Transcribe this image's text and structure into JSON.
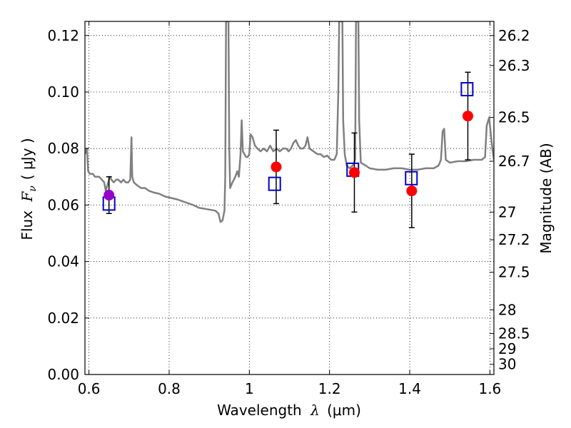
{
  "chart_data": {
    "type": "scatter",
    "xlabel_main": "Wavelength",
    "xlabel_symbol": "λ",
    "xlabel_unit": "(μm)",
    "ylabel_main": "Flux",
    "ylabel_symbol": "F",
    "ylabel_sub": "ν",
    "ylabel_unit": "( μJy )",
    "y2label": "Magnitude (AB)",
    "xlim": [
      0.59,
      1.61
    ],
    "ylim": [
      0.0,
      0.125
    ],
    "grid": true,
    "x_ticks": [
      {
        "value": 0.6,
        "label": "0.6"
      },
      {
        "value": 0.8,
        "label": "0.8"
      },
      {
        "value": 1.0,
        "label": "1"
      },
      {
        "value": 1.2,
        "label": "1.2"
      },
      {
        "value": 1.4,
        "label": "1.4"
      },
      {
        "value": 1.6,
        "label": "1.6"
      }
    ],
    "y_ticks": [
      {
        "value": 0.0,
        "label": "0.00"
      },
      {
        "value": 0.02,
        "label": "0.02"
      },
      {
        "value": 0.04,
        "label": "0.04"
      },
      {
        "value": 0.06,
        "label": "0.06"
      },
      {
        "value": 0.08,
        "label": "0.08"
      },
      {
        "value": 0.1,
        "label": "0.10"
      },
      {
        "value": 0.12,
        "label": "0.12"
      }
    ],
    "y2_ticks": [
      {
        "flux": 0.12,
        "label": "26.2"
      },
      {
        "flux": 0.1094,
        "label": "26.3"
      },
      {
        "flux": 0.091,
        "label": "26.5"
      },
      {
        "flux": 0.0755,
        "label": "26.7"
      },
      {
        "flux": 0.0575,
        "label": "27"
      },
      {
        "flux": 0.0477,
        "label": "27.2"
      },
      {
        "flux": 0.0362,
        "label": "27.5"
      },
      {
        "flux": 0.0229,
        "label": "28"
      },
      {
        "flux": 0.0145,
        "label": "28.5"
      },
      {
        "flux": 0.0091,
        "label": "29"
      },
      {
        "flux": 0.0036,
        "label": "30"
      }
    ],
    "series": [
      {
        "kind": "line",
        "color": "#808080",
        "points": [
          [
            0.59,
            0.078
          ],
          [
            0.595,
            0.08
          ],
          [
            0.598,
            0.072
          ],
          [
            0.602,
            0.071
          ],
          [
            0.61,
            0.071
          ],
          [
            0.615,
            0.07
          ],
          [
            0.625,
            0.07
          ],
          [
            0.632,
            0.069
          ],
          [
            0.638,
            0.068
          ],
          [
            0.642,
            0.065
          ],
          [
            0.646,
            0.067
          ],
          [
            0.652,
            0.07
          ],
          [
            0.656,
            0.069
          ],
          [
            0.662,
            0.068
          ],
          [
            0.668,
            0.069
          ],
          [
            0.673,
            0.069
          ],
          [
            0.68,
            0.068
          ],
          [
            0.686,
            0.069
          ],
          [
            0.692,
            0.068
          ],
          [
            0.698,
            0.068
          ],
          [
            0.703,
            0.069
          ],
          [
            0.706,
            0.084
          ],
          [
            0.708,
            0.07
          ],
          [
            0.712,
            0.068
          ],
          [
            0.72,
            0.067
          ],
          [
            0.73,
            0.066
          ],
          [
            0.74,
            0.066
          ],
          [
            0.75,
            0.065
          ],
          [
            0.76,
            0.0645
          ],
          [
            0.775,
            0.064
          ],
          [
            0.79,
            0.063
          ],
          [
            0.805,
            0.0625
          ],
          [
            0.82,
            0.062
          ],
          [
            0.84,
            0.061
          ],
          [
            0.86,
            0.06
          ],
          [
            0.875,
            0.059
          ],
          [
            0.895,
            0.0585
          ],
          [
            0.915,
            0.058
          ],
          [
            0.923,
            0.057
          ],
          [
            0.928,
            0.054
          ],
          [
            0.933,
            0.0545
          ],
          [
            0.938,
            0.058
          ],
          [
            0.94,
            0.07
          ],
          [
            0.942,
            0.125
          ],
          [
            0.948,
            0.125
          ],
          [
            0.95,
            0.08
          ],
          [
            0.952,
            0.066
          ],
          [
            0.958,
            0.068
          ],
          [
            0.965,
            0.07
          ],
          [
            0.97,
            0.072
          ],
          [
            0.974,
            0.07
          ],
          [
            0.978,
            0.078
          ],
          [
            0.981,
            0.09
          ],
          [
            0.984,
            0.079
          ],
          [
            0.988,
            0.078
          ],
          [
            0.992,
            0.077
          ],
          [
            0.996,
            0.077
          ],
          [
            1.0,
            0.078
          ],
          [
            1.003,
            0.085
          ],
          [
            1.008,
            0.084
          ],
          [
            1.014,
            0.081
          ],
          [
            1.02,
            0.08
          ],
          [
            1.028,
            0.079
          ],
          [
            1.036,
            0.08
          ],
          [
            1.044,
            0.079
          ],
          [
            1.052,
            0.081
          ],
          [
            1.06,
            0.079
          ],
          [
            1.068,
            0.08
          ],
          [
            1.076,
            0.079
          ],
          [
            1.084,
            0.08
          ],
          [
            1.092,
            0.08
          ],
          [
            1.098,
            0.079
          ],
          [
            1.104,
            0.08
          ],
          [
            1.11,
            0.082
          ],
          [
            1.116,
            0.083
          ],
          [
            1.122,
            0.081
          ],
          [
            1.128,
            0.08
          ],
          [
            1.134,
            0.08
          ],
          [
            1.14,
            0.081
          ],
          [
            1.145,
            0.084
          ],
          [
            1.15,
            0.08
          ],
          [
            1.16,
            0.079
          ],
          [
            1.17,
            0.078
          ],
          [
            1.178,
            0.078
          ],
          [
            1.186,
            0.077
          ],
          [
            1.194,
            0.0775
          ],
          [
            1.204,
            0.076
          ],
          [
            1.212,
            0.076
          ],
          [
            1.218,
            0.078
          ],
          [
            1.222,
            0.1
          ],
          [
            1.224,
            0.125
          ],
          [
            1.232,
            0.125
          ],
          [
            1.234,
            0.09
          ],
          [
            1.238,
            0.078
          ],
          [
            1.243,
            0.074
          ],
          [
            1.25,
            0.073
          ],
          [
            1.258,
            0.074
          ],
          [
            1.264,
            0.076
          ],
          [
            1.266,
            0.125
          ],
          [
            1.272,
            0.125
          ],
          [
            1.274,
            0.09
          ],
          [
            1.278,
            0.075
          ],
          [
            1.29,
            0.074
          ],
          [
            1.3,
            0.073
          ],
          [
            1.32,
            0.0725
          ],
          [
            1.34,
            0.0725
          ],
          [
            1.36,
            0.073
          ],
          [
            1.38,
            0.073
          ],
          [
            1.4,
            0.0725
          ],
          [
            1.42,
            0.0725
          ],
          [
            1.44,
            0.073
          ],
          [
            1.46,
            0.073
          ],
          [
            1.472,
            0.074
          ],
          [
            1.478,
            0.076
          ],
          [
            1.482,
            0.086
          ],
          [
            1.486,
            0.087
          ],
          [
            1.49,
            0.076
          ],
          [
            1.5,
            0.075
          ],
          [
            1.52,
            0.0755
          ],
          [
            1.54,
            0.0755
          ],
          [
            1.56,
            0.076
          ],
          [
            1.58,
            0.076
          ],
          [
            1.588,
            0.077
          ],
          [
            1.592,
            0.088
          ],
          [
            1.598,
            0.091
          ],
          [
            1.603,
            0.084
          ],
          [
            1.607,
            0.079
          ],
          [
            1.61,
            0.076
          ]
        ]
      },
      {
        "kind": "points",
        "marker": "circle",
        "color": "#ff0000",
        "points": [
          {
            "x": 1.067,
            "y": 0.0735,
            "err_low": 0.0605,
            "err_high": 0.0865
          },
          {
            "x": 1.262,
            "y": 0.0715,
            "err_low": 0.0575,
            "err_high": 0.0855
          },
          {
            "x": 1.405,
            "y": 0.065,
            "err_low": 0.052,
            "err_high": 0.078
          },
          {
            "x": 1.545,
            "y": 0.0915,
            "err_low": 0.076,
            "err_high": 0.107
          }
        ]
      },
      {
        "kind": "points",
        "marker": "circle",
        "color": "#9900cc",
        "points": [
          {
            "x": 0.65,
            "y": 0.0635,
            "err_low": 0.057,
            "err_high": 0.07
          }
        ]
      },
      {
        "kind": "points",
        "marker": "square",
        "color": "#0000cc",
        "points": [
          {
            "x": 0.65,
            "y": 0.0605
          },
          {
            "x": 1.063,
            "y": 0.0675
          },
          {
            "x": 1.258,
            "y": 0.0725
          },
          {
            "x": 1.404,
            "y": 0.0695
          },
          {
            "x": 1.543,
            "y": 0.101
          }
        ]
      }
    ]
  }
}
